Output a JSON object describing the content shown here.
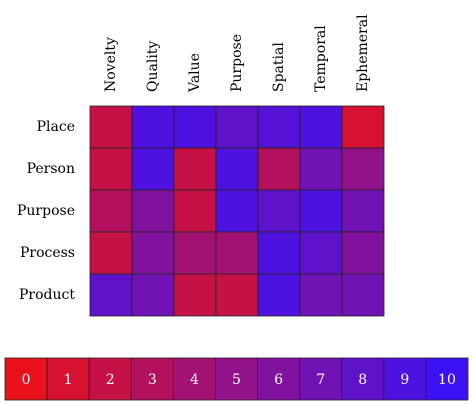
{
  "chart_data": {
    "type": "heatmap",
    "x": [
      "Novelty",
      "Quality",
      "Value",
      "Purpose",
      "Spatial",
      "Temporal",
      "Ephemeral"
    ],
    "y": [
      "Place",
      "Person",
      "Purpose",
      "Process",
      "Product"
    ],
    "values": [
      [
        2,
        9,
        9,
        8,
        8.5,
        9,
        1
      ],
      [
        2,
        9,
        2,
        9,
        3,
        7,
        5
      ],
      [
        3,
        6,
        2,
        9,
        8,
        9,
        7
      ],
      [
        2,
        6,
        4,
        4,
        9,
        8,
        6
      ],
      [
        8,
        7,
        2,
        2,
        9,
        7,
        7
      ]
    ],
    "colormap": [
      "#e8111c",
      "#3c12f5"
    ],
    "clim": [
      0,
      10
    ],
    "colorbar_ticks": [
      0,
      1,
      2,
      3,
      4,
      5,
      6,
      7,
      8,
      9,
      10
    ]
  }
}
